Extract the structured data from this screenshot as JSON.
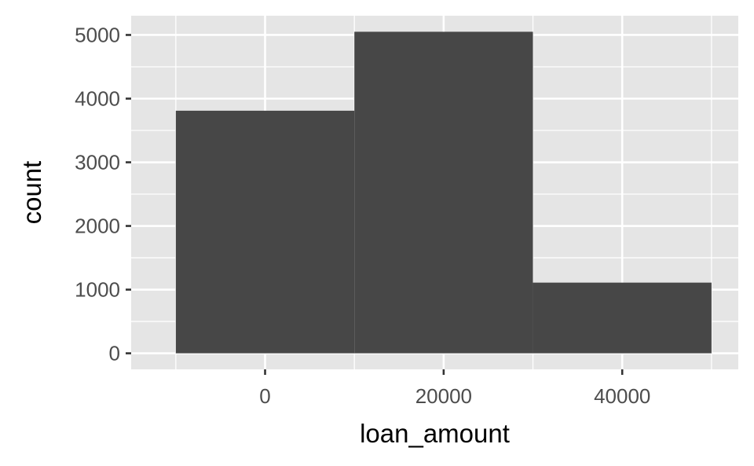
{
  "chart_data": {
    "type": "bar",
    "xlabel": "loan_amount",
    "ylabel": "count",
    "bins": [
      {
        "x_start": -10000,
        "x_end": 10000,
        "count": 3810
      },
      {
        "x_start": 10000,
        "x_end": 30000,
        "count": 5050
      },
      {
        "x_start": 30000,
        "x_end": 50000,
        "count": 1110
      }
    ],
    "x_ticks": [
      0,
      20000,
      40000
    ],
    "x_tick_labels": [
      "0",
      "20000",
      "40000"
    ],
    "y_ticks": [
      0,
      1000,
      2000,
      3000,
      4000,
      5000
    ],
    "y_tick_labels": [
      "0",
      "1000",
      "2000",
      "3000",
      "4000",
      "5000"
    ],
    "xlim": [
      -15000,
      53000
    ],
    "ylim": [
      -252,
      5302
    ],
    "grid": true,
    "legend": "none",
    "colors": {
      "panel_background": "#e5e5e5",
      "grid_line": "#ffffff",
      "bar_fill": "#474747",
      "tick_label": "#4d4d4d",
      "axis_title": "#000000"
    }
  }
}
